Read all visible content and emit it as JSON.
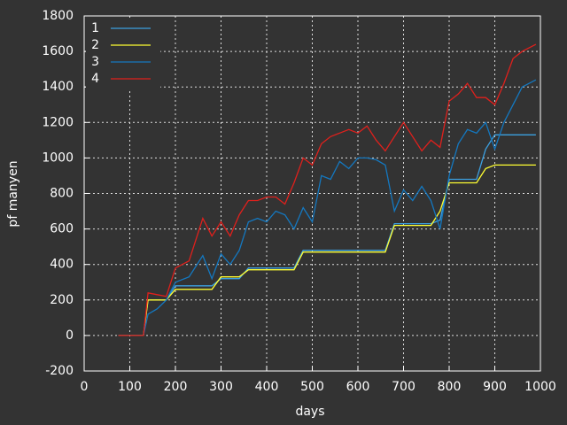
{
  "chart_data": {
    "type": "line",
    "x_label": "days",
    "y_label": "pf manyen",
    "x": [
      75,
      130,
      140,
      160,
      180,
      200,
      230,
      260,
      280,
      300,
      320,
      340,
      360,
      380,
      400,
      420,
      440,
      460,
      480,
      500,
      520,
      540,
      560,
      580,
      600,
      620,
      640,
      660,
      680,
      700,
      720,
      740,
      760,
      780,
      800,
      820,
      840,
      860,
      880,
      900,
      920,
      940,
      960,
      990
    ],
    "series": [
      {
        "name": "1",
        "color": "#3ca0e0",
        "values": [
          0,
          0,
          200,
          200,
          200,
          280,
          280,
          280,
          280,
          320,
          320,
          320,
          380,
          380,
          380,
          380,
          380,
          380,
          480,
          480,
          480,
          480,
          480,
          480,
          480,
          480,
          480,
          480,
          630,
          630,
          630,
          630,
          630,
          650,
          880,
          880,
          880,
          880,
          1050,
          1130,
          1130,
          1130,
          1130,
          1130
        ]
      },
      {
        "name": "2",
        "color": "#ffff33",
        "values": [
          0,
          0,
          200,
          200,
          200,
          260,
          260,
          260,
          260,
          330,
          330,
          330,
          370,
          370,
          370,
          370,
          370,
          370,
          470,
          470,
          470,
          470,
          470,
          470,
          470,
          470,
          470,
          470,
          620,
          620,
          620,
          620,
          620,
          700,
          860,
          860,
          860,
          860,
          940,
          960,
          960,
          960,
          960,
          960
        ]
      },
      {
        "name": "3",
        "color": "#1478c0",
        "values": [
          0,
          0,
          120,
          150,
          200,
          300,
          330,
          450,
          320,
          460,
          400,
          480,
          640,
          660,
          640,
          700,
          680,
          600,
          720,
          640,
          900,
          880,
          980,
          940,
          1000,
          1000,
          990,
          960,
          700,
          820,
          760,
          840,
          760,
          600,
          900,
          1080,
          1160,
          1140,
          1200,
          1050,
          1200,
          1300,
          1400,
          1440
        ]
      },
      {
        "name": "4",
        "color": "#e0201c",
        "values": [
          0,
          0,
          240,
          230,
          220,
          380,
          420,
          660,
          560,
          640,
          560,
          680,
          760,
          760,
          780,
          780,
          740,
          860,
          1000,
          960,
          1080,
          1120,
          1140,
          1160,
          1140,
          1180,
          1100,
          1040,
          1120,
          1200,
          1120,
          1040,
          1100,
          1060,
          1320,
          1360,
          1420,
          1340,
          1340,
          1300,
          1420,
          1560,
          1600,
          1640
        ]
      }
    ],
    "xlim": [
      0,
      1000
    ],
    "xticks": [
      0,
      100,
      200,
      300,
      400,
      500,
      600,
      700,
      800,
      900,
      1000
    ],
    "ylim": [
      -200,
      1800
    ],
    "yticks": [
      -200,
      0,
      200,
      400,
      600,
      800,
      1000,
      1200,
      1400,
      1600,
      1800
    ],
    "grid": true,
    "legend": "top-left"
  }
}
